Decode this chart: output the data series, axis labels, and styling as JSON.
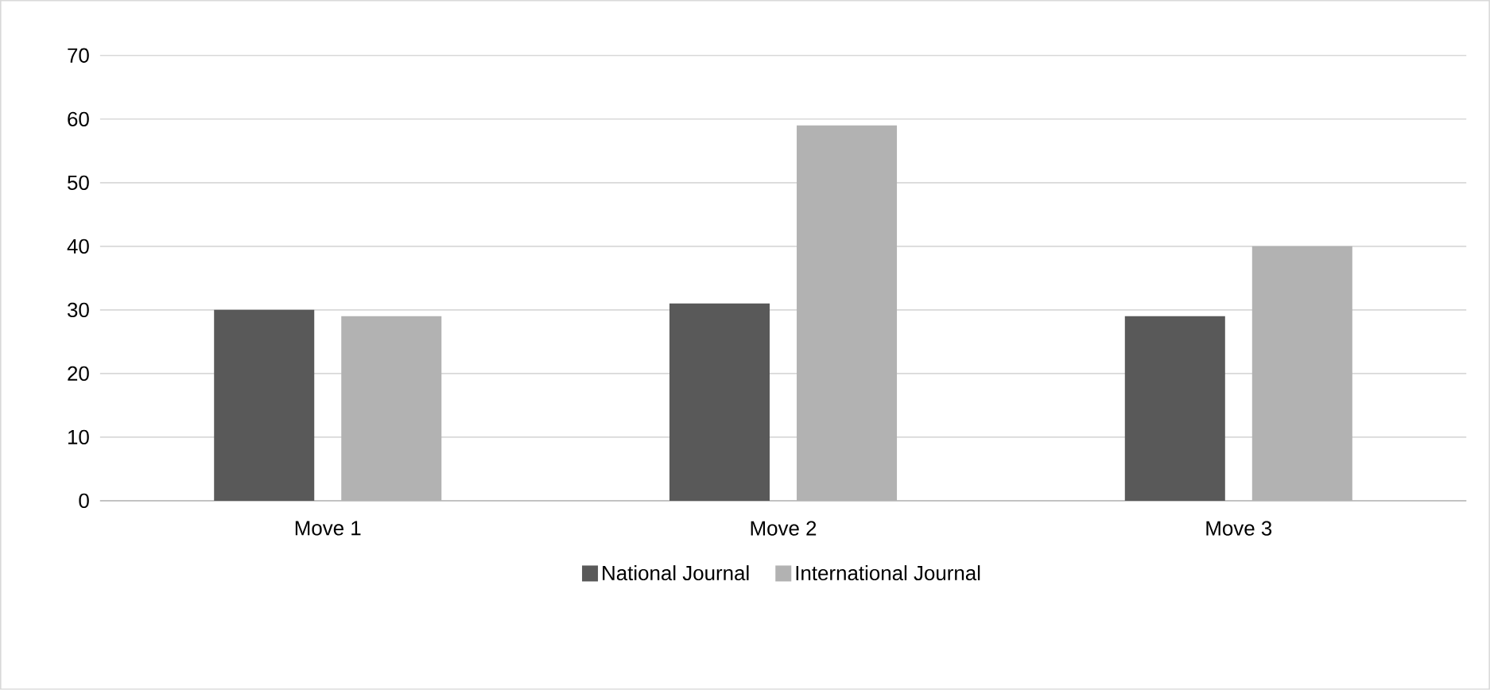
{
  "chart_data": {
    "type": "bar",
    "categories": [
      "Move 1",
      "Move 2",
      "Move 3"
    ],
    "series": [
      {
        "name": "National Journal",
        "color": "#595959",
        "values": [
          30,
          31,
          29
        ]
      },
      {
        "name": "International Journal",
        "color": "#b2b2b2",
        "values": [
          29,
          59,
          40
        ]
      }
    ],
    "ylim": [
      0,
      70
    ],
    "yticks": [
      0,
      10,
      20,
      30,
      40,
      50,
      60,
      70
    ],
    "grid": "y",
    "legend": "bottom"
  }
}
